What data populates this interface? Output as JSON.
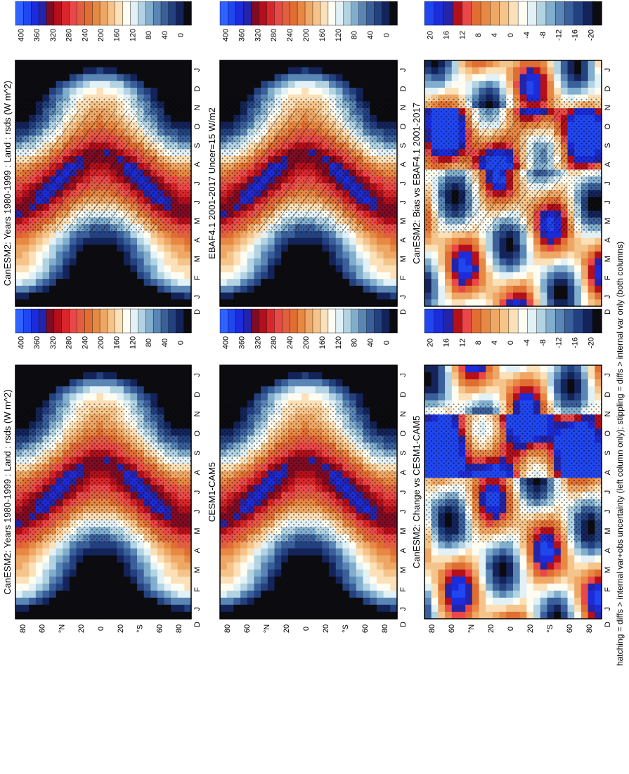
{
  "figure": {
    "footnote": "hatching = diffs > internal var+obs uncertainty (left column only); stippling = diffs > internal var only (both columns)"
  },
  "colormaps": {
    "abs": [
      "#0c0c10",
      "#14245a",
      "#23417e",
      "#3a5f9a",
      "#5a86b5",
      "#82aecd",
      "#b2d3e2",
      "#e1f1f6",
      "#fffdf2",
      "#fbe0b8",
      "#f4c48a",
      "#eea765",
      "#e78843",
      "#e06e32",
      "#e15f3f",
      "#ea4848",
      "#d8262b",
      "#b3101c",
      "#7e0c24",
      "#2424a8",
      "#1c2cda",
      "#2046f0",
      "#2f62ff"
    ],
    "diff": [
      "#0c0c10",
      "#14245a",
      "#23417e",
      "#3a5f9a",
      "#5a86b5",
      "#82aecd",
      "#b2d3e2",
      "#e1f1f6",
      "#fffdf2",
      "#fbe0b8",
      "#f4c48a",
      "#eea765",
      "#e78843",
      "#e06e32",
      "#ea4848",
      "#b3101c",
      "#2424a8",
      "#1c2cda",
      "#2046f0"
    ]
  },
  "chart_data": [
    {
      "type": "heatmap",
      "panel": "top-left",
      "title": "CanESM2: Years 1980-1999 : Land : rsds (W m^2)",
      "x": [
        "J",
        "F",
        "M",
        "A",
        "M",
        "J",
        "J",
        "A",
        "S",
        "O",
        "N",
        "D",
        "J"
      ],
      "y_ticks": [
        "80",
        "60",
        "°N",
        "20",
        "0",
        "20",
        "°S",
        "60",
        "80"
      ],
      "y_range": [
        -90,
        90
      ],
      "x_label": "D",
      "colorbar_ticks": [
        "0",
        "40",
        "80",
        "120",
        "160",
        "200",
        "240",
        "280",
        "320",
        "360",
        "400"
      ],
      "hatching": true,
      "stippling": true
    },
    {
      "type": "heatmap",
      "panel": "top-right",
      "title": "CanESM2: Years 1980-1999 : Land : rsds (W m^2)",
      "x": [
        "J",
        "F",
        "M",
        "A",
        "M",
        "J",
        "J",
        "A",
        "S",
        "O",
        "N",
        "D",
        "J"
      ],
      "y_ticks": [
        "80",
        "60",
        "°N",
        "20",
        "0",
        "20",
        "°S",
        "60",
        "80"
      ],
      "y_range": [
        -90,
        90
      ],
      "x_label": "D",
      "colorbar_ticks": [
        "0",
        "40",
        "80",
        "120",
        "160",
        "200",
        "240",
        "280",
        "320",
        "360",
        "400"
      ],
      "hatching": false,
      "stippling": true
    },
    {
      "type": "heatmap",
      "panel": "middle-left",
      "title": "EBAF4.1 2001-2017 Uncer=15 W/m2",
      "x": [
        "J",
        "F",
        "M",
        "A",
        "M",
        "J",
        "J",
        "A",
        "S",
        "O",
        "N",
        "D",
        "J"
      ],
      "y_ticks": [
        "80",
        "60",
        "°N",
        "20",
        "0",
        "20",
        "°S",
        "60",
        "80"
      ],
      "y_range": [
        -90,
        90
      ],
      "x_label": "D",
      "colorbar_ticks": [
        "0",
        "40",
        "80",
        "120",
        "160",
        "200",
        "240",
        "280",
        "320",
        "360",
        "400"
      ],
      "hatching": true,
      "stippling": true
    },
    {
      "type": "heatmap",
      "panel": "middle-right",
      "title": "CESM1-CAM5",
      "x": [
        "J",
        "F",
        "M",
        "A",
        "M",
        "J",
        "J",
        "A",
        "S",
        "O",
        "N",
        "D",
        "J"
      ],
      "y_ticks": [
        "80",
        "60",
        "°N",
        "20",
        "0",
        "20",
        "°S",
        "60",
        "80"
      ],
      "y_range": [
        -90,
        90
      ],
      "x_label": "D",
      "colorbar_ticks": [
        "0",
        "40",
        "80",
        "120",
        "160",
        "200",
        "240",
        "280",
        "320",
        "360",
        "400"
      ],
      "hatching": false,
      "stippling": true
    },
    {
      "type": "heatmap",
      "panel": "bottom-left",
      "title": "CanESM2: Bias vs EBAF4.1 2001-2017",
      "x": [
        "J",
        "F",
        "M",
        "A",
        "M",
        "J",
        "J",
        "A",
        "S",
        "O",
        "N",
        "D",
        "J"
      ],
      "y_ticks": [
        "80",
        "60",
        "°N",
        "20",
        "0",
        "20",
        "°S",
        "60",
        "80"
      ],
      "y_range": [
        -90,
        90
      ],
      "x_label": "D",
      "colorbar_ticks": [
        "-20",
        "-16",
        "-12",
        "-8",
        "-4",
        "0",
        "4",
        "8",
        "12",
        "16",
        "20"
      ],
      "hatching": true,
      "stippling": true
    },
    {
      "type": "heatmap",
      "panel": "bottom-right",
      "title": "CanESM2: Change vs CESM1-CAM5",
      "x": [
        "J",
        "F",
        "M",
        "A",
        "M",
        "J",
        "J",
        "A",
        "S",
        "O",
        "N",
        "D",
        "J"
      ],
      "y_ticks": [
        "80",
        "60",
        "°N",
        "20",
        "0",
        "20",
        "°S",
        "60",
        "80"
      ],
      "y_range": [
        -90,
        90
      ],
      "x_label": "D",
      "colorbar_ticks": [
        "-20",
        "-16",
        "-12",
        "-8",
        "-4",
        "0",
        "4",
        "8",
        "12",
        "16",
        "20"
      ],
      "hatching": false,
      "stippling": true
    }
  ]
}
